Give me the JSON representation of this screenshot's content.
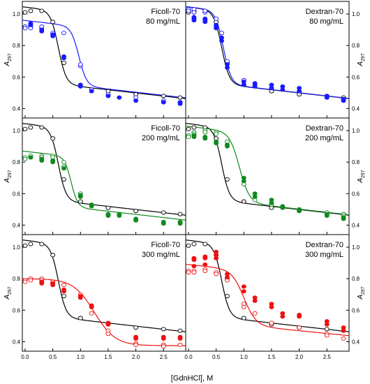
{
  "figure": {
    "xlabel": "[GdnHCl], M",
    "ylabel_main": "A",
    "ylabel_sub": "297"
  },
  "chart_data": [
    {
      "type": "scatter",
      "title": "Ficoll-70",
      "subtitle": "80 mg/mL",
      "xlim": [
        -0.05,
        2.9
      ],
      "ylim": [
        0.34,
        1.08
      ],
      "x_ticks": [
        0.0,
        0.5,
        1.0,
        1.5,
        2.0,
        2.5
      ],
      "x_tick_labels": [
        "0.0",
        "0.5",
        "1.0",
        "1.5",
        "2.0",
        "2.5"
      ],
      "y_ticks": [
        0.4,
        0.6,
        0.8,
        1.0
      ],
      "y_tick_labels": [
        "0.4",
        "0.6",
        "0.8",
        "1.0"
      ],
      "series": [
        {
          "role": "reference",
          "color": "#000000",
          "fill": "open",
          "curve": {
            "top": 1.02,
            "bottom": 0.555,
            "mid": 0.6,
            "width": 0.07,
            "slope": -0.04
          },
          "x": [
            0.0,
            0.1,
            0.3,
            0.5,
            0.7,
            1.0,
            1.5,
            2.0,
            2.5,
            2.8
          ],
          "y": [
            1.01,
            1.02,
            1.02,
            0.95,
            0.69,
            0.55,
            0.51,
            0.49,
            0.48,
            0.47
          ]
        },
        {
          "role": "crowder",
          "color": "#1a1aff",
          "fill": "open",
          "curve": {
            "top": 0.92,
            "bottom": 0.545,
            "mid": 0.97,
            "width": 0.07,
            "slope": -0.04
          },
          "x": [
            0.0,
            0.0,
            0.1,
            0.1,
            0.3,
            0.3,
            0.5,
            0.7,
            1.0,
            1.0,
            1.2,
            1.5,
            2.0,
            2.5,
            2.5,
            2.8
          ],
          "y": [
            0.92,
            0.91,
            0.92,
            0.91,
            0.91,
            0.92,
            0.88,
            0.88,
            0.67,
            0.68,
            0.52,
            0.49,
            0.47,
            0.45,
            0.44,
            0.44
          ]
        },
        {
          "role": "crowder",
          "color": "#1a1aff",
          "fill": "filled",
          "x": [
            0.1,
            0.1,
            0.3,
            0.3,
            0.5,
            0.5,
            0.7,
            0.7,
            1.0,
            1.0,
            1.2,
            1.5,
            1.7,
            2.0,
            2.5,
            2.8,
            2.8
          ],
          "y": [
            0.94,
            0.93,
            0.9,
            0.89,
            0.87,
            0.86,
            0.72,
            0.73,
            0.55,
            0.54,
            0.51,
            0.48,
            0.47,
            0.45,
            0.44,
            0.44,
            0.43
          ]
        }
      ]
    },
    {
      "type": "scatter",
      "title": "Dextran-70",
      "subtitle": "80 mg/mL",
      "xlim": [
        -0.05,
        2.9
      ],
      "ylim": [
        0.34,
        1.08
      ],
      "x_ticks": [
        0.0,
        0.5,
        1.0,
        1.5,
        2.0,
        2.5
      ],
      "x_tick_labels": [
        "0.0",
        "0.5",
        "1.0",
        "1.5",
        "2.0",
        "2.5"
      ],
      "y_ticks": [
        0.4,
        0.6,
        0.8,
        1.0
      ],
      "y_tick_labels": [
        "0.4",
        "0.6",
        "0.8",
        "1.0"
      ],
      "series": [
        {
          "role": "reference",
          "color": "#000000",
          "fill": "open",
          "curve": {
            "top": 1.02,
            "bottom": 0.555,
            "mid": 0.6,
            "width": 0.07,
            "slope": -0.04
          },
          "x": [
            0.0,
            0.1,
            0.3,
            0.5,
            0.7,
            1.0,
            1.5,
            2.0,
            2.5,
            2.8
          ],
          "y": [
            1.01,
            1.02,
            1.02,
            0.95,
            0.69,
            0.55,
            0.51,
            0.49,
            0.48,
            0.47
          ]
        },
        {
          "role": "crowder",
          "color": "#1a1aff",
          "fill": "open",
          "curve": {
            "top": 1.02,
            "bottom": 0.555,
            "mid": 0.63,
            "width": 0.07,
            "slope": -0.04
          },
          "x": [
            0.0,
            0.0,
            0.1,
            0.1,
            0.3,
            0.3,
            0.5,
            0.6,
            0.7,
            1.0,
            1.2,
            1.5,
            2.0,
            2.5,
            2.5,
            2.8,
            2.8
          ],
          "y": [
            1.03,
            1.02,
            1.03,
            1.01,
            1.01,
            1.02,
            0.97,
            0.88,
            0.7,
            0.58,
            0.55,
            0.53,
            0.51,
            0.48,
            0.47,
            0.46,
            0.45
          ]
        },
        {
          "role": "crowder",
          "color": "#1a1aff",
          "fill": "filled",
          "x": [
            0.1,
            0.1,
            0.1,
            0.3,
            0.3,
            0.3,
            0.5,
            0.5,
            0.5,
            0.6,
            0.6,
            0.7,
            0.7,
            1.0,
            1.0,
            1.2,
            1.2,
            1.5,
            1.5,
            1.7,
            1.7,
            2.0,
            2.0,
            2.5,
            2.5,
            2.8,
            2.8
          ],
          "y": [
            0.98,
            0.97,
            0.96,
            0.97,
            0.96,
            0.95,
            0.93,
            0.92,
            0.91,
            0.85,
            0.83,
            0.68,
            0.66,
            0.57,
            0.55,
            0.56,
            0.54,
            0.55,
            0.53,
            0.54,
            0.52,
            0.53,
            0.51,
            0.48,
            0.47,
            0.46,
            0.45
          ]
        }
      ]
    },
    {
      "type": "scatter",
      "title": "Ficoll-70",
      "subtitle": "200 mg/mL",
      "xlim": [
        -0.05,
        2.9
      ],
      "ylim": [
        0.34,
        1.08
      ],
      "x_ticks": [
        0.0,
        0.5,
        1.0,
        1.5,
        2.0,
        2.5
      ],
      "x_tick_labels": [
        "0.0",
        "0.5",
        "1.0",
        "1.5",
        "2.0",
        "2.5"
      ],
      "y_ticks": [
        0.4,
        0.6,
        0.8,
        1.0
      ],
      "y_tick_labels": [
        "0.4",
        "0.6",
        "0.8",
        "1.0"
      ],
      "series": [
        {
          "role": "reference",
          "color": "#000000",
          "fill": "open",
          "curve": {
            "top": 1.02,
            "bottom": 0.555,
            "mid": 0.6,
            "width": 0.07,
            "slope": -0.04
          },
          "x": [
            0.0,
            0.1,
            0.3,
            0.5,
            0.7,
            1.0,
            1.5,
            2.0,
            2.5,
            2.8
          ],
          "y": [
            1.01,
            1.02,
            1.02,
            0.95,
            0.69,
            0.55,
            0.51,
            0.49,
            0.48,
            0.47
          ]
        },
        {
          "role": "crowder",
          "color": "#0f8a1e",
          "fill": "open",
          "curve": {
            "top": 0.835,
            "bottom": 0.515,
            "mid": 0.83,
            "width": 0.06,
            "slope": -0.04
          },
          "x": [
            0.0,
            0.0,
            0.1,
            0.1,
            0.3,
            0.3,
            0.5,
            0.5,
            0.7,
            0.7,
            1.0
          ],
          "y": [
            0.83,
            0.82,
            0.83,
            0.84,
            0.84,
            0.83,
            0.84,
            0.83,
            0.77,
            0.8,
            0.6
          ]
        },
        {
          "role": "crowder",
          "color": "#0f8a1e",
          "fill": "filled",
          "x": [
            0.1,
            0.3,
            0.3,
            0.5,
            0.5,
            0.7,
            1.0,
            1.0,
            1.2,
            1.2,
            1.5,
            1.5,
            1.7,
            1.7,
            2.0,
            2.0,
            2.5,
            2.5,
            2.8,
            2.8
          ],
          "y": [
            0.83,
            0.82,
            0.81,
            0.81,
            0.8,
            0.76,
            0.59,
            0.58,
            0.53,
            0.52,
            0.47,
            0.46,
            0.47,
            0.46,
            0.44,
            0.43,
            0.42,
            0.41,
            0.42,
            0.41
          ]
        }
      ]
    },
    {
      "type": "scatter",
      "title": "Dextran-70",
      "subtitle": "200 mg/mL",
      "xlim": [
        -0.05,
        2.9
      ],
      "ylim": [
        0.34,
        1.08
      ],
      "x_ticks": [
        0.0,
        0.5,
        1.0,
        1.5,
        2.0,
        2.5
      ],
      "x_tick_labels": [
        "0.0",
        "0.5",
        "1.0",
        "1.5",
        "2.0",
        "2.5"
      ],
      "y_ticks": [
        0.4,
        0.6,
        0.8,
        1.0
      ],
      "y_tick_labels": [
        "0.4",
        "0.6",
        "0.8",
        "1.0"
      ],
      "series": [
        {
          "role": "reference",
          "color": "#000000",
          "fill": "open",
          "curve": {
            "top": 1.02,
            "bottom": 0.555,
            "mid": 0.6,
            "width": 0.07,
            "slope": -0.04
          },
          "x": [
            0.0,
            0.1,
            0.3,
            0.5,
            0.7,
            1.0,
            1.5,
            2.0,
            2.5,
            2.8
          ],
          "y": [
            1.01,
            1.02,
            1.02,
            0.95,
            0.69,
            0.55,
            0.51,
            0.49,
            0.48,
            0.47
          ]
        },
        {
          "role": "crowder",
          "color": "#0f8a1e",
          "fill": "open",
          "curve": {
            "top": 0.99,
            "bottom": 0.545,
            "mid": 0.92,
            "width": 0.09,
            "slope": -0.04
          },
          "x": [
            0.0,
            0.0,
            0.1,
            0.1,
            0.3,
            0.3,
            0.5,
            0.5,
            0.7,
            1.0,
            1.2,
            1.5,
            2.0,
            2.5,
            2.5,
            2.8,
            2.8
          ],
          "y": [
            0.97,
            0.96,
            0.99,
            0.98,
            1.0,
            0.99,
            0.99,
            0.98,
            0.93,
            0.66,
            0.56,
            0.53,
            0.5,
            0.47,
            0.48,
            0.47,
            0.46
          ]
        },
        {
          "role": "crowder",
          "color": "#0f8a1e",
          "fill": "filled",
          "x": [
            0.1,
            0.1,
            0.3,
            0.3,
            0.5,
            0.5,
            0.7,
            0.7,
            1.0,
            1.0,
            1.2,
            1.2,
            1.5,
            1.5,
            1.7,
            1.7,
            2.0,
            2.0,
            2.5,
            2.5,
            2.8,
            2.8
          ],
          "y": [
            0.97,
            0.96,
            0.96,
            0.95,
            0.93,
            0.92,
            0.91,
            0.9,
            0.7,
            0.68,
            0.6,
            0.58,
            0.56,
            0.54,
            0.52,
            0.51,
            0.5,
            0.49,
            0.47,
            0.46,
            0.45,
            0.44
          ]
        }
      ]
    },
    {
      "type": "scatter",
      "title": "Ficoll-70",
      "subtitle": "300 mg/mL",
      "xlim": [
        -0.05,
        2.9
      ],
      "ylim": [
        0.34,
        1.08
      ],
      "x_ticks": [
        0.0,
        0.5,
        1.0,
        1.5,
        2.0,
        2.5
      ],
      "x_tick_labels": [
        "0.0",
        "0.5",
        "1.0",
        "1.5",
        "2.0",
        "2.5"
      ],
      "y_ticks": [
        0.4,
        0.6,
        0.8,
        1.0
      ],
      "y_tick_labels": [
        "0.4",
        "0.6",
        "0.8",
        "1.0"
      ],
      "series": [
        {
          "role": "reference",
          "color": "#000000",
          "fill": "open",
          "curve": {
            "top": 1.02,
            "bottom": 0.555,
            "mid": 0.6,
            "width": 0.07,
            "slope": -0.04
          },
          "x": [
            0.0,
            0.1,
            0.3,
            0.5,
            0.7,
            1.0,
            1.5,
            2.0,
            2.5,
            2.8
          ],
          "y": [
            1.01,
            1.02,
            1.02,
            0.95,
            0.69,
            0.55,
            0.51,
            0.49,
            0.48,
            0.47
          ]
        },
        {
          "role": "crowder",
          "color": "#ee1111",
          "fill": "open",
          "curve": {
            "top": 0.8,
            "bottom": 0.375,
            "mid": 1.25,
            "width": 0.19,
            "slope": 0.0
          },
          "x": [
            0.0,
            0.0,
            0.1,
            0.1,
            0.3,
            0.3,
            0.5,
            0.5,
            0.7,
            1.0,
            1.2,
            1.5,
            1.5,
            2.0,
            2.0,
            2.5,
            2.5,
            2.8
          ],
          "y": [
            0.79,
            0.78,
            0.8,
            0.79,
            0.8,
            0.79,
            0.78,
            0.77,
            0.76,
            0.7,
            0.58,
            0.47,
            0.45,
            0.39,
            0.38,
            0.38,
            0.37,
            0.38
          ]
        },
        {
          "role": "crowder",
          "color": "#ee1111",
          "fill": "filled",
          "x": [
            0.3,
            0.3,
            0.5,
            0.5,
            0.7,
            0.7,
            1.0,
            1.0,
            1.2,
            1.2,
            1.5,
            1.5,
            2.0,
            2.0,
            2.5,
            2.5,
            2.8,
            2.8
          ],
          "y": [
            0.78,
            0.77,
            0.77,
            0.76,
            0.73,
            0.72,
            0.69,
            0.68,
            0.63,
            0.62,
            0.52,
            0.51,
            0.43,
            0.42,
            0.43,
            0.42,
            0.43,
            0.42
          ]
        }
      ]
    },
    {
      "type": "scatter",
      "title": "Dextran-70",
      "subtitle": "300 mg/mL",
      "xlim": [
        -0.05,
        2.9
      ],
      "ylim": [
        0.34,
        1.08
      ],
      "x_ticks": [
        0.0,
        0.5,
        1.0,
        1.5,
        2.0,
        2.5
      ],
      "x_tick_labels": [
        "0.0",
        "0.5",
        "1.0",
        "1.5",
        "2.0",
        "2.5"
      ],
      "y_ticks": [
        0.4,
        0.6,
        0.8,
        1.0
      ],
      "y_tick_labels": [
        "0.4",
        "0.6",
        "0.8",
        "1.0"
      ],
      "series": [
        {
          "role": "reference",
          "color": "#000000",
          "fill": "open",
          "curve": {
            "top": 1.02,
            "bottom": 0.555,
            "mid": 0.6,
            "width": 0.07,
            "slope": -0.04
          },
          "x": [
            0.0,
            0.1,
            0.3,
            0.5,
            0.7,
            1.0,
            1.5,
            2.0,
            2.5,
            2.8
          ],
          "y": [
            1.01,
            1.02,
            1.02,
            0.95,
            0.69,
            0.55,
            0.51,
            0.49,
            0.48,
            0.47
          ]
        },
        {
          "role": "crowder",
          "color": "#ee1111",
          "fill": "open",
          "curve": {
            "top": 0.855,
            "bottom": 0.505,
            "mid": 1.0,
            "width": 0.11,
            "slope": -0.035
          },
          "x": [
            0.0,
            0.0,
            0.1,
            0.1,
            0.3,
            0.3,
            0.5,
            0.5,
            0.7,
            0.7,
            1.0,
            1.0,
            1.2,
            1.5,
            2.0,
            2.5,
            2.5,
            2.8
          ],
          "y": [
            0.85,
            0.84,
            0.85,
            0.84,
            0.86,
            0.85,
            0.84,
            0.83,
            0.8,
            0.79,
            0.64,
            0.62,
            0.58,
            0.52,
            0.49,
            0.45,
            0.44,
            0.42
          ]
        },
        {
          "role": "crowder",
          "color": "#ee1111",
          "fill": "filled",
          "x": [
            0.1,
            0.1,
            0.1,
            0.3,
            0.3,
            0.3,
            0.5,
            0.5,
            0.5,
            0.7,
            0.7,
            1.0,
            1.0,
            1.2,
            1.2,
            1.5,
            1.5,
            1.7,
            1.7,
            2.0,
            2.0,
            2.5,
            2.5,
            2.8,
            2.8
          ],
          "y": [
            0.93,
            0.92,
            0.88,
            0.94,
            0.93,
            0.89,
            0.97,
            0.95,
            0.93,
            0.83,
            0.81,
            0.75,
            0.72,
            0.68,
            0.66,
            0.64,
            0.62,
            0.58,
            0.56,
            0.57,
            0.56,
            0.53,
            0.51,
            0.49,
            0.47
          ]
        }
      ]
    }
  ]
}
